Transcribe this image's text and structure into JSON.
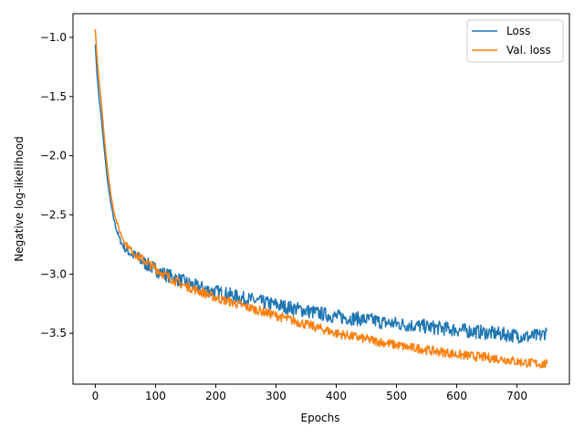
{
  "chart_data": {
    "type": "line",
    "title": "",
    "xlabel": "Epochs",
    "ylabel": "Negative log-likelihood",
    "xlim": [
      -37,
      787
    ],
    "ylim": [
      -3.93,
      -0.8
    ],
    "xticks": [
      0,
      100,
      200,
      300,
      400,
      500,
      600,
      700
    ],
    "yticks": [
      -1.0,
      -1.5,
      -2.0,
      -2.5,
      -3.0,
      -3.5
    ],
    "ytick_labels": [
      "−1.0",
      "−1.5",
      "−2.0",
      "−2.5",
      "−3.0",
      "−3.5"
    ],
    "grid": false,
    "legend_position": "top-right",
    "series": [
      {
        "name": "Loss",
        "color": "#1f77b4",
        "x": [
          0,
          3,
          6,
          10,
          15,
          20,
          25,
          30,
          35,
          40,
          45,
          50,
          60,
          70,
          80,
          90,
          100,
          110,
          120,
          130,
          140,
          150,
          160,
          170,
          180,
          190,
          200,
          220,
          240,
          260,
          280,
          300,
          320,
          340,
          360,
          380,
          400,
          420,
          440,
          460,
          480,
          500,
          520,
          540,
          560,
          580,
          600,
          620,
          640,
          660,
          680,
          700,
          720,
          740,
          750
        ],
        "y": [
          -1.06,
          -1.32,
          -1.5,
          -1.68,
          -1.95,
          -2.2,
          -2.38,
          -2.52,
          -2.62,
          -2.7,
          -2.75,
          -2.79,
          -2.83,
          -2.86,
          -2.9,
          -2.93,
          -2.96,
          -2.99,
          -3.01,
          -3.03,
          -3.05,
          -3.07,
          -3.09,
          -3.11,
          -3.12,
          -3.14,
          -3.15,
          -3.17,
          -3.2,
          -3.22,
          -3.24,
          -3.26,
          -3.28,
          -3.3,
          -3.32,
          -3.34,
          -3.36,
          -3.37,
          -3.38,
          -3.39,
          -3.41,
          -3.42,
          -3.43,
          -3.44,
          -3.45,
          -3.46,
          -3.47,
          -3.48,
          -3.49,
          -3.5,
          -3.51,
          -3.52,
          -3.53,
          -3.52,
          -3.48
        ]
      },
      {
        "name": "Val. loss",
        "color": "#ff7f0e",
        "x": [
          0,
          3,
          6,
          10,
          15,
          20,
          25,
          30,
          35,
          40,
          45,
          50,
          60,
          70,
          80,
          90,
          100,
          110,
          120,
          130,
          140,
          150,
          160,
          170,
          180,
          190,
          200,
          220,
          240,
          260,
          280,
          300,
          320,
          340,
          360,
          380,
          400,
          420,
          440,
          460,
          480,
          500,
          520,
          540,
          560,
          580,
          600,
          620,
          640,
          660,
          680,
          700,
          720,
          740,
          750
        ],
        "y": [
          -0.93,
          -1.18,
          -1.35,
          -1.55,
          -1.85,
          -2.1,
          -2.3,
          -2.45,
          -2.55,
          -2.63,
          -2.69,
          -2.74,
          -2.8,
          -2.85,
          -2.88,
          -2.92,
          -2.95,
          -2.99,
          -3.02,
          -3.05,
          -3.08,
          -3.1,
          -3.12,
          -3.14,
          -3.16,
          -3.18,
          -3.2,
          -3.23,
          -3.26,
          -3.29,
          -3.32,
          -3.35,
          -3.38,
          -3.41,
          -3.44,
          -3.47,
          -3.5,
          -3.52,
          -3.54,
          -3.56,
          -3.58,
          -3.6,
          -3.62,
          -3.63,
          -3.65,
          -3.66,
          -3.68,
          -3.69,
          -3.7,
          -3.71,
          -3.72,
          -3.74,
          -3.75,
          -3.76,
          -3.76
        ]
      }
    ]
  }
}
